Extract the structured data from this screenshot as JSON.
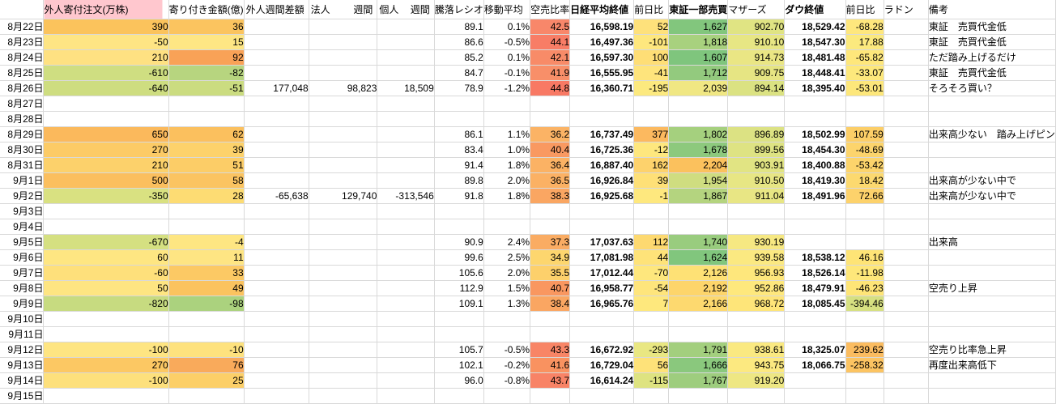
{
  "colors": {
    "negative_text": "#ff0000",
    "bad_header_bg": "#ffc7ce",
    "bad_header_text": "#bb4450",
    "gridline": "#d9d9d9",
    "date_separator": "#8f8f8f"
  },
  "headers": [
    "",
    "外人寄付注文(万株)",
    "寄り付き金額(億)",
    [
      "外人",
      "週間差額"
    ],
    [
      "法人",
      "週間"
    ],
    [
      "個人",
      "週間"
    ],
    "騰落レシオ",
    "移動平均",
    "空売比率",
    "日経平均終値",
    "前日比",
    "東証一部売買",
    "マザーズ",
    "ダウ終値",
    "前日比",
    "ラドン",
    "備考"
  ],
  "rows": [
    {
      "d": "8月22日",
      "c": [
        [
          "390",
          "#fbc35c",
          1
        ],
        [
          "36",
          "#fbc45f"
        ],
        0,
        0,
        0,
        [
          "89.1"
        ],
        [
          "0.1%"
        ],
        [
          "42.5",
          "#f8876a"
        ],
        [
          "16,598.19"
        ],
        [
          "52",
          "#fee17b"
        ],
        [
          "1,627",
          "#82c67d"
        ],
        [
          "902.70",
          "#e0e483"
        ],
        [
          "18,529.42"
        ],
        [
          "-68.28",
          "#fee77d",
          1
        ],
        0,
        [
          "東証　売買代金低"
        ]
      ]
    },
    {
      "d": "8月23日",
      "c": [
        [
          "-50",
          "#fee584",
          1
        ],
        [
          "15",
          "#fee684"
        ],
        0,
        0,
        0,
        [
          "86.6"
        ],
        [
          "-0.5%",
          0,
          1
        ],
        [
          "44.1",
          "#f87d66"
        ],
        [
          "16,497.36"
        ],
        [
          "-101",
          "#fee77e",
          1
        ],
        [
          "1,818",
          "#a8d17e"
        ],
        [
          "910.10",
          "#e7e684"
        ],
        [
          "18,547.30"
        ],
        [
          "17.88",
          "#fbe97e"
        ],
        0,
        [
          "東証　売買代金低"
        ]
      ]
    },
    {
      "d": "8月24日",
      "c": [
        [
          "210",
          "#fee182",
          1
        ],
        [
          "92",
          "#f9a257"
        ],
        0,
        0,
        0,
        [
          "85.2"
        ],
        [
          "0.1%"
        ],
        [
          "42.1",
          "#f88b68"
        ],
        [
          "16,597.30"
        ],
        [
          "100",
          "#fede76"
        ],
        [
          "1,607",
          "#7fc57d"
        ],
        [
          "914.73",
          "#eae684"
        ],
        [
          "18,481.48"
        ],
        [
          "-65.82",
          "#fee77b",
          1
        ],
        0,
        [
          "ただ踏み上げるだけ"
        ]
      ]
    },
    {
      "d": "8月25日",
      "c": [
        [
          "-610",
          "#cfde81",
          1
        ],
        [
          "-82",
          "#b7d57f",
          1
        ],
        0,
        0,
        0,
        [
          "84.7"
        ],
        [
          "-0.1%",
          0,
          1
        ],
        [
          "41.9",
          "#f88f69"
        ],
        [
          "16,555.95"
        ],
        [
          "-41",
          "#fee47c",
          1
        ],
        [
          "1,712",
          "#93ca7e"
        ],
        [
          "909.75",
          "#e6e583"
        ],
        [
          "18,448.41"
        ],
        [
          "-33.07",
          "#fde87c",
          1
        ],
        0,
        [
          "東証　売買代金低"
        ]
      ]
    },
    {
      "d": "8月26日",
      "c": [
        [
          "-640",
          "#cedd80",
          1
        ],
        [
          "-51",
          "#cbdc80",
          1
        ],
        [
          "177,048"
        ],
        [
          "98,823"
        ],
        [
          "18,509"
        ],
        [
          "78.9"
        ],
        [
          "-1.2%",
          0,
          1
        ],
        [
          "44.8",
          "#f87964"
        ],
        [
          "16,360.71"
        ],
        [
          "-195",
          "#fce97f",
          1
        ],
        [
          "2,039",
          "#f0e783"
        ],
        [
          "894.14",
          "#dbe282"
        ],
        [
          "18,395.40"
        ],
        [
          "-53.01",
          "#fde77b",
          1
        ],
        0,
        [
          "そろそろ買い？"
        ]
      ]
    },
    {
      "d": "8月27日",
      "c": [
        0,
        0,
        0,
        0,
        0,
        0,
        0,
        0,
        0,
        0,
        0,
        0,
        0,
        0,
        0,
        0
      ]
    },
    {
      "d": "8月28日",
      "c": [
        0,
        0,
        0,
        0,
        0,
        0,
        0,
        0,
        0,
        0,
        0,
        0,
        0,
        0,
        0,
        0
      ]
    },
    {
      "d": "8月29日",
      "c": [
        [
          "650",
          "#fbb95c",
          1
        ],
        [
          "62",
          "#fbc05e"
        ],
        0,
        0,
        0,
        [
          "86.1"
        ],
        [
          "1.1%"
        ],
        [
          "36.2",
          "#fbb365"
        ],
        [
          "16,737.49"
        ],
        [
          "377",
          "#fcb95f"
        ],
        [
          "1,802",
          "#a5d07e"
        ],
        [
          "896.89",
          "#dce283"
        ],
        [
          "18,502.99"
        ],
        [
          "107.59",
          "#fcce67"
        ],
        0,
        [
          "出来高少ない　踏み上げピン",
          0,
          2
        ]
      ]
    },
    {
      "d": "8月30日",
      "c": [
        [
          "270",
          "#fccb66",
          1
        ],
        [
          "39",
          "#fdd26b"
        ],
        0,
        0,
        0,
        [
          "83.4"
        ],
        [
          "1.0%"
        ],
        [
          "40.4",
          "#f99961"
        ],
        [
          "16,725.36"
        ],
        [
          "-12",
          "#fee77e",
          1
        ],
        [
          "1,678",
          "#8dc97d"
        ],
        [
          "899.56",
          "#dee383"
        ],
        [
          "18,454.30"
        ],
        [
          "-48.69",
          "#fcd46c",
          1
        ],
        0,
        0
      ]
    },
    {
      "d": "8月31日",
      "c": [
        [
          "210",
          "#fcd16b",
          1
        ],
        [
          "51",
          "#fccd67"
        ],
        0,
        0,
        0,
        [
          "91.4"
        ],
        [
          "1.8%"
        ],
        [
          "36.4",
          "#fbb264"
        ],
        [
          "16,887.40"
        ],
        [
          "162",
          "#fdd26c"
        ],
        [
          "2,204",
          "#fbc15d"
        ],
        [
          "903.91",
          "#e1e483"
        ],
        [
          "18,400.88"
        ],
        [
          "-53.42",
          "#fcd46b",
          1
        ],
        0,
        0
      ]
    },
    {
      "d": "9月1日",
      "c": [
        [
          "500",
          "#fbbf5e",
          1
        ],
        [
          "58",
          "#fbc461"
        ],
        0,
        0,
        0,
        [
          "89.8"
        ],
        [
          "2.0%"
        ],
        [
          "36.5",
          "#fbb164"
        ],
        [
          "16,926.84"
        ],
        [
          "39",
          "#fee077"
        ],
        [
          "1,954",
          "#cfdd80"
        ],
        [
          "910.50",
          "#e7e684"
        ],
        [
          "18,419.30"
        ],
        [
          "18.42",
          "#fcd96f"
        ],
        0,
        [
          "出来高が少ない中で"
        ]
      ]
    },
    {
      "d": "9月2日",
      "c": [
        [
          "-350",
          "#d9e181",
          1
        ],
        [
          "28",
          "#fddc73"
        ],
        [
          "-65,638",
          0,
          1
        ],
        [
          "129,740"
        ],
        [
          "-313,546",
          0,
          1
        ],
        [
          "91.8"
        ],
        [
          "1.8%"
        ],
        [
          "38.3",
          "#faa662"
        ],
        [
          "16,925.68"
        ],
        [
          "-1",
          "#fee87e",
          1
        ],
        [
          "1,867",
          "#b4d47f"
        ],
        [
          "911.04",
          "#e8e684"
        ],
        [
          "18,491.96"
        ],
        [
          "72.66",
          "#fdd26b"
        ],
        0,
        [
          "出来高が少ない中で"
        ]
      ]
    },
    {
      "d": "9月3日",
      "c": [
        0,
        0,
        0,
        0,
        0,
        0,
        0,
        0,
        0,
        0,
        0,
        0,
        0,
        0,
        0,
        0
      ]
    },
    {
      "d": "9月4日",
      "c": [
        0,
        0,
        0,
        0,
        0,
        0,
        0,
        0,
        0,
        0,
        0,
        0,
        0,
        0,
        0,
        0
      ]
    },
    {
      "d": "9月5日",
      "c": [
        [
          "-670",
          "#d5e081",
          1
        ],
        [
          "-4",
          "#fee682",
          1
        ],
        0,
        0,
        0,
        [
          "90.9"
        ],
        [
          "2.4%"
        ],
        [
          "37.3",
          "#faac63"
        ],
        [
          "17,037.63"
        ],
        [
          "112",
          "#fdd970"
        ],
        [
          "1,740",
          "#99cc7e"
        ],
        [
          "930.19",
          "#f6e882"
        ],
        0,
        0,
        0,
        [
          "出来高"
        ]
      ]
    },
    {
      "d": "9月6日",
      "c": [
        [
          "60",
          "#fee682"
        ],
        [
          "11",
          "#fee583"
        ],
        0,
        0,
        0,
        [
          "99.6"
        ],
        [
          "2.5%"
        ],
        [
          "34.9",
          "#fdd66e"
        ],
        [
          "17,081.98"
        ],
        [
          "44",
          "#fee379"
        ],
        [
          "1,624",
          "#81c67d"
        ],
        [
          "939.58",
          "#fbe981"
        ],
        [
          "18,538.12"
        ],
        [
          "46.16",
          "#fee476"
        ],
        0,
        0
      ]
    },
    {
      "d": "9月7日",
      "c": [
        [
          "-60",
          "#fee07b",
          1
        ],
        [
          "33",
          "#fcc964"
        ],
        0,
        0,
        0,
        [
          "105.6"
        ],
        [
          "2.0%"
        ],
        [
          "35.5",
          "#fdd06b"
        ],
        [
          "17,012.44"
        ],
        [
          "-70",
          "#fee77d",
          1
        ],
        [
          "2,126",
          "#fee175"
        ],
        [
          "956.93",
          "#fee77c"
        ],
        [
          "18,526.14"
        ],
        [
          "-11.98",
          "#fee77a",
          1
        ],
        0,
        0
      ]
    },
    {
      "d": "9月8日",
      "c": [
        [
          "50",
          "#fee582"
        ],
        [
          "49",
          "#fbc35f"
        ],
        0,
        0,
        0,
        [
          "112.9"
        ],
        [
          "1.5%"
        ],
        [
          "40.7",
          "#f99760"
        ],
        [
          "16,958.77"
        ],
        [
          "-54",
          "#fee57c",
          1
        ],
        [
          "2,192",
          "#fdd56b"
        ],
        [
          "952.86",
          "#fee87d"
        ],
        [
          "18,479.91"
        ],
        [
          "-46.23",
          "#fee577",
          1
        ],
        0,
        [
          "空売り上昇"
        ]
      ]
    },
    {
      "d": "9月9日",
      "c": [
        [
          "-820",
          "#c7db80",
          1
        ],
        [
          "-98",
          "#abd27e",
          1
        ],
        0,
        0,
        0,
        [
          "109.1"
        ],
        [
          "1.3%"
        ],
        [
          "38.4",
          "#faa662"
        ],
        [
          "16,965.76"
        ],
        [
          "7",
          "#fee87d"
        ],
        [
          "2,166",
          "#fdd96f"
        ],
        [
          "968.72",
          "#fee579"
        ],
        [
          "18,085.45"
        ],
        [
          "-394.46",
          "#d6e081",
          1
        ],
        0,
        0
      ]
    },
    {
      "d": "9月10日",
      "c": [
        0,
        0,
        0,
        0,
        0,
        0,
        0,
        0,
        0,
        0,
        0,
        0,
        0,
        0,
        0,
        0
      ]
    },
    {
      "d": "9月11日",
      "c": [
        0,
        0,
        0,
        0,
        0,
        0,
        0,
        0,
        0,
        0,
        0,
        0,
        0,
        0,
        0,
        0
      ]
    },
    {
      "d": "9月12日",
      "c": [
        [
          "-100",
          "#fee582",
          1
        ],
        [
          "-10",
          "#fee27e",
          1
        ],
        0,
        0,
        0,
        [
          "105.7"
        ],
        [
          "-0.5%",
          0,
          1
        ],
        [
          "43.3",
          "#f88566"
        ],
        [
          "16,672.92"
        ],
        [
          "-293",
          "#e9e782",
          1
        ],
        [
          "1,791",
          "#a3cf7e"
        ],
        [
          "938.61",
          "#fae981"
        ],
        [
          "18,325.07"
        ],
        [
          "239.62",
          "#fbbc60"
        ],
        0,
        [
          "空売り比率急上昇"
        ]
      ]
    },
    {
      "d": "9月13日",
      "c": [
        [
          "270",
          "#fcc863",
          1
        ],
        [
          "76",
          "#f9aa5b"
        ],
        0,
        0,
        0,
        [
          "102.1"
        ],
        [
          "-0.2%",
          0,
          1
        ],
        [
          "41.6",
          "#f99260"
        ],
        [
          "16,729.04"
        ],
        [
          "56",
          "#fee279"
        ],
        [
          "1,666",
          "#8ac87d"
        ],
        [
          "943.75",
          "#fce980"
        ],
        [
          "18,066.75"
        ],
        [
          "-258.32",
          "#fcc462",
          1
        ],
        0,
        [
          "再度出来高低下"
        ]
      ]
    },
    {
      "d": "9月14日",
      "c": [
        [
          "-100",
          "#fde07c",
          1
        ],
        [
          "25",
          "#fccf68"
        ],
        0,
        0,
        0,
        [
          "96.0"
        ],
        [
          "-0.8%",
          0,
          1
        ],
        [
          "43.7",
          "#f88366"
        ],
        [
          "16,614.24"
        ],
        [
          "-115",
          "#dee380",
          1
        ],
        [
          "1,767",
          "#9ecd7e"
        ],
        [
          "919.20",
          "#eee783"
        ],
        0,
        0,
        0,
        0
      ]
    },
    {
      "d": "9月15日",
      "c": [
        0,
        0,
        0,
        0,
        0,
        0,
        0,
        0,
        0,
        0,
        0,
        0,
        0,
        0,
        0,
        0
      ]
    }
  ]
}
